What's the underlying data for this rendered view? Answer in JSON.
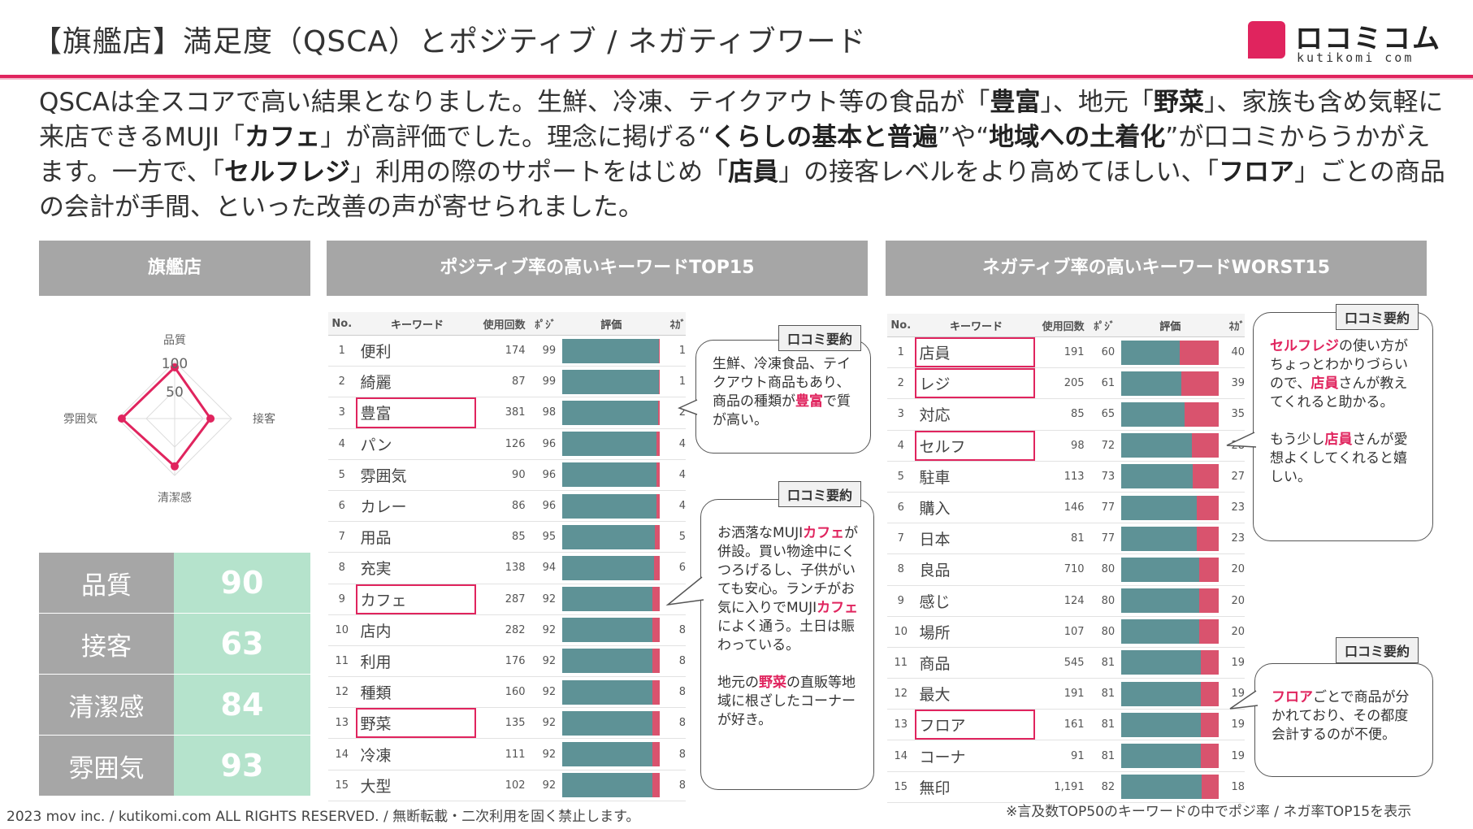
{
  "title": "【旗艦店】満足度（QSCA）とポジティブ / ネガティブワード",
  "logo": {
    "name": "ロコミコム",
    "sub": "kutikomi com"
  },
  "summary": [
    {
      "t": "QSCAは全スコアで高い結果となりました。生鮮、冷凍、テイクアウト等の食品が「",
      "b": false
    },
    {
      "t": "豊富",
      "b": true
    },
    {
      "t": "」、地元「",
      "b": false
    },
    {
      "t": "野菜",
      "b": true
    },
    {
      "t": "」、家族も含め気軽に来店できるMUJI「",
      "b": false
    },
    {
      "t": "カフェ",
      "b": true
    },
    {
      "t": "」が高評価でした。理念に掲げる“",
      "b": false
    },
    {
      "t": "くらしの基本と普遍",
      "b": true
    },
    {
      "t": "”や“",
      "b": false
    },
    {
      "t": "地域への土着化",
      "b": true
    },
    {
      "t": "”が口コミからうかがえます。一方で、「",
      "b": false
    },
    {
      "t": "セルフレジ",
      "b": true
    },
    {
      "t": "」利用の際のサポートをはじめ「",
      "b": false
    },
    {
      "t": "店員",
      "b": true
    },
    {
      "t": "」の接客レベルをより高めてほしい、「",
      "b": false
    },
    {
      "t": "フロア",
      "b": true
    },
    {
      "t": "」ごとの商品の会計が手間、といった改善の声が寄せられました。",
      "b": false
    }
  ],
  "sections": {
    "store": "旗艦店",
    "positive": "ポジティブ率の高いキーワードTOP15",
    "negative": "ネガティブ率の高いキーワードWORST15"
  },
  "radar": {
    "axes": [
      "品質",
      "接客",
      "清潔感",
      "雰囲気"
    ],
    "ticks": [
      "100",
      "50"
    ],
    "max": 100,
    "line_color": "#e0245e"
  },
  "scores": [
    {
      "label": "品質",
      "value": 90
    },
    {
      "label": "接客",
      "value": 63
    },
    {
      "label": "清潔感",
      "value": 84
    },
    {
      "label": "雰囲気",
      "value": 93
    }
  ],
  "table_headers": {
    "no": "No.",
    "kw": "キーワード",
    "cnt": "使用回数",
    "pos": "ﾎﾟｼﾞ",
    "eval": "評価",
    "neg": "ﾈｶﾞ"
  },
  "positive": [
    {
      "no": "1",
      "kw": "便利",
      "cnt": "174",
      "pos": 99,
      "neg": "1"
    },
    {
      "no": "2",
      "kw": "綺麗",
      "cnt": "87",
      "pos": 99,
      "neg": "1"
    },
    {
      "no": "3",
      "kw": "豊富",
      "cnt": "381",
      "pos": 98,
      "neg": "2"
    },
    {
      "no": "4",
      "kw": "パン",
      "cnt": "126",
      "pos": 96,
      "neg": "4"
    },
    {
      "no": "5",
      "kw": "雰囲気",
      "cnt": "90",
      "pos": 96,
      "neg": "4"
    },
    {
      "no": "6",
      "kw": "カレー",
      "cnt": "86",
      "pos": 96,
      "neg": "4"
    },
    {
      "no": "7",
      "kw": "用品",
      "cnt": "85",
      "pos": 95,
      "neg": "5"
    },
    {
      "no": "8",
      "kw": "充実",
      "cnt": "138",
      "pos": 94,
      "neg": "6"
    },
    {
      "no": "9",
      "kw": "カフェ",
      "cnt": "287",
      "pos": 92,
      "neg": "8"
    },
    {
      "no": "10",
      "kw": "店内",
      "cnt": "282",
      "pos": 92,
      "neg": "8"
    },
    {
      "no": "11",
      "kw": "利用",
      "cnt": "176",
      "pos": 92,
      "neg": "8"
    },
    {
      "no": "12",
      "kw": "種類",
      "cnt": "160",
      "pos": 92,
      "neg": "8"
    },
    {
      "no": "13",
      "kw": "野菜",
      "cnt": "135",
      "pos": 92,
      "neg": "8"
    },
    {
      "no": "14",
      "kw": "冷凍",
      "cnt": "111",
      "pos": 92,
      "neg": "8"
    },
    {
      "no": "15",
      "kw": "大型",
      "cnt": "102",
      "pos": 92,
      "neg": "8"
    }
  ],
  "positive_highlight": [
    3,
    9,
    13
  ],
  "negative": [
    {
      "no": "1",
      "kw": "店員",
      "cnt": "191",
      "pos": 60,
      "neg": "40"
    },
    {
      "no": "2",
      "kw": "レジ",
      "cnt": "205",
      "pos": 61,
      "neg": "39"
    },
    {
      "no": "3",
      "kw": "対応",
      "cnt": "85",
      "pos": 65,
      "neg": "35"
    },
    {
      "no": "4",
      "kw": "セルフ",
      "cnt": "98",
      "pos": 72,
      "neg": "28"
    },
    {
      "no": "5",
      "kw": "駐車",
      "cnt": "113",
      "pos": 73,
      "neg": "27"
    },
    {
      "no": "6",
      "kw": "購入",
      "cnt": "146",
      "pos": 77,
      "neg": "23"
    },
    {
      "no": "7",
      "kw": "日本",
      "cnt": "81",
      "pos": 77,
      "neg": "23"
    },
    {
      "no": "8",
      "kw": "良品",
      "cnt": "710",
      "pos": 80,
      "neg": "20"
    },
    {
      "no": "9",
      "kw": "感じ",
      "cnt": "124",
      "pos": 80,
      "neg": "20"
    },
    {
      "no": "10",
      "kw": "場所",
      "cnt": "107",
      "pos": 80,
      "neg": "20"
    },
    {
      "no": "11",
      "kw": "商品",
      "cnt": "545",
      "pos": 81,
      "neg": "19"
    },
    {
      "no": "12",
      "kw": "最大",
      "cnt": "191",
      "pos": 81,
      "neg": "19"
    },
    {
      "no": "13",
      "kw": "フロア",
      "cnt": "161",
      "pos": 81,
      "neg": "19"
    },
    {
      "no": "14",
      "kw": "コーナ",
      "cnt": "91",
      "pos": 81,
      "neg": "19"
    },
    {
      "no": "15",
      "kw": "無印",
      "cnt": "1,191",
      "pos": 82,
      "neg": "18"
    }
  ],
  "negative_highlight": [
    1,
    2,
    4,
    13
  ],
  "bubbles": {
    "tag": "口コミ要約",
    "b1": [
      {
        "t": "生鮮、冷凍食品、テイクアウト商品もあり、商品の種類が"
      },
      {
        "t": "豊富",
        "b": true
      },
      {
        "t": "で質が高い。"
      }
    ],
    "b2": [
      {
        "t": "お洒落なMUJI"
      },
      {
        "t": "カフェ",
        "b": true
      },
      {
        "t": "が併設。買い物途中にくつろげるし、子供がいても安心。ランチがお気に入りでMUJI"
      },
      {
        "t": "カフェ",
        "b": true
      },
      {
        "t": "によく通う。土日は賑わっている。"
      },
      {
        "br": true
      },
      {
        "t": "地元の"
      },
      {
        "t": "野菜",
        "b": true
      },
      {
        "t": "の直販等地域に根ざしたコーナーが好き。"
      }
    ],
    "b3": [
      {
        "t": "セルフレジ",
        "b": true
      },
      {
        "t": "の使い方がちょっとわかりづらいので、"
      },
      {
        "t": "店員",
        "b": true
      },
      {
        "t": "さんが教えてくれると助かる。"
      },
      {
        "br": true
      },
      {
        "t": "もう少し"
      },
      {
        "t": "店員",
        "b": true
      },
      {
        "t": "さんが愛想よくしてくれると嬉しい。"
      }
    ],
    "b4": [
      {
        "t": "フロア",
        "b": true
      },
      {
        "t": "ごとで商品が分かれており、その都度会計するのが不便。"
      }
    ]
  },
  "footer_left": "2023 mov inc. / kutikomi.com ALL RIGHTS RESERVED. / 無断転載・二次利用を固く禁止します。",
  "footer_right": "※言及数TOP50のキーワードの中でポジ率 / ネガ率TOP15を表示"
}
